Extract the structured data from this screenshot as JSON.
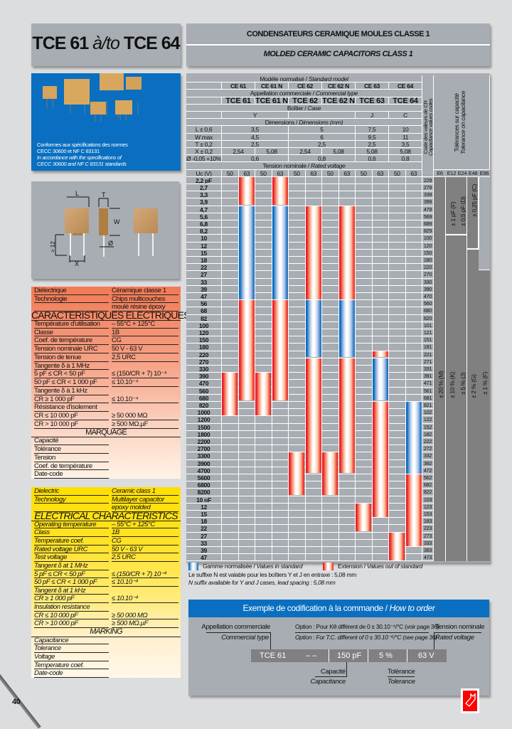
{
  "title": {
    "part1": "TCE 61",
    "mid": "à/",
    "mid_en": "to",
    "part2": "TCE 64"
  },
  "header": {
    "fr": "CONDENSATEURS CERAMIQUE MOULES CLASSE 1",
    "en": "MOLDED CERAMIC CAPACITORS CLASS 1"
  },
  "photo": {
    "lines": [
      "Conformes aux spécifications des normes",
      "CECC 30600 et NF C 83131"
    ],
    "lines_en": [
      "In accordance with the specifications of",
      "CECC 30600 and NF C 83131 standards"
    ]
  },
  "diagram": {
    "labels": {
      "L": "L",
      "T": "T",
      "W": "W",
      "min": "> 12",
      "X": "X",
      "dia": "Ø"
    }
  },
  "colors": {
    "panel": "#a7adb2",
    "blue": "#0a6fc0",
    "extension": "#e8232a",
    "french_table": "#f07a55",
    "english_table": "#ffe100",
    "tolerance_dark": "#808080"
  },
  "table": {
    "header_rows": [
      {
        "fr": "Modèle normalisé / ",
        "en": "Standard model"
      },
      {
        "label": "",
        "bold": true,
        "cells": [
          {
            "t": "CE 61",
            "span": 2
          },
          {
            "t": "CE 61 N",
            "span": 2
          },
          {
            "t": "CE 62",
            "span": 2
          },
          {
            "t": "CE 62 N",
            "span": 2
          },
          {
            "t": "CE 63",
            "span": 2
          },
          {
            "t": "CE 64",
            "span": 2
          }
        ]
      },
      {
        "fr": "Appellation commerciale / ",
        "en": "Commercial type"
      },
      {
        "label": "",
        "big": true,
        "cells": [
          {
            "t": "TCE 61",
            "span": 2
          },
          {
            "t": "TCE 61 N",
            "span": 2
          },
          {
            "t": "TCE 62",
            "span": 2
          },
          {
            "t": "TCE 62 N",
            "span": 2
          },
          {
            "t": "TCE 63",
            "span": 2
          },
          {
            "t": "TCE 64",
            "span": 2
          }
        ]
      },
      {
        "fr": "Boîtier / ",
        "en": "Case"
      },
      {
        "label": "",
        "cells": [
          {
            "t": "Y",
            "span": 4
          },
          {
            "t": "",
            "span": 4
          },
          {
            "t": "J",
            "span": 2
          },
          {
            "t": "C",
            "span": 2
          }
        ]
      },
      {
        "fr": "Dimensions / ",
        "en": "Dimensions (mm)"
      },
      {
        "label": "L ± 0,6",
        "cells": [
          {
            "t": "3,5",
            "span": 4
          },
          {
            "t": "5",
            "span": 4
          },
          {
            "t": "7,5",
            "span": 2
          },
          {
            "t": "10",
            "span": 2
          }
        ]
      },
      {
        "label": "W max",
        "cells": [
          {
            "t": "4,5",
            "span": 4
          },
          {
            "t": "6",
            "span": 4
          },
          {
            "t": "9,5",
            "span": 2
          },
          {
            "t": "11",
            "span": 2
          }
        ]
      },
      {
        "label": "T ± 0,2",
        "cells": [
          {
            "t": "2,5",
            "span": 4
          },
          {
            "t": "2,5",
            "span": 4
          },
          {
            "t": "2,5",
            "span": 2
          },
          {
            "t": "3,5",
            "span": 2
          }
        ]
      },
      {
        "label": "X ± 0,2",
        "cells": [
          {
            "t": "2,54",
            "span": 2
          },
          {
            "t": "5,08",
            "span": 2
          },
          {
            "t": "2,54",
            "span": 2
          },
          {
            "t": "5,08",
            "span": 2
          },
          {
            "t": "5,08",
            "span": 2
          },
          {
            "t": "5,08",
            "span": 2
          }
        ]
      },
      {
        "label": "Ø -0,05 +10%",
        "cells": [
          {
            "t": "0,6",
            "span": 4
          },
          {
            "t": "0,8",
            "span": 4
          },
          {
            "t": "0,6",
            "span": 2
          },
          {
            "t": "0,8",
            "span": 2
          }
        ]
      },
      {
        "fr": "Tension nominale / ",
        "en": "Rated voltage"
      },
      {
        "label": "Uc (V)",
        "cells": [
          {
            "t": "50",
            "span": 1
          },
          {
            "t": "63",
            "span": 1
          },
          {
            "t": "50",
            "span": 1
          },
          {
            "t": "63",
            "span": 1
          },
          {
            "t": "50",
            "span": 1
          },
          {
            "t": "63",
            "span": 1
          },
          {
            "t": "50",
            "span": 1
          },
          {
            "t": "63",
            "span": 1
          },
          {
            "t": "50",
            "span": 1
          },
          {
            "t": "63",
            "span": 1
          },
          {
            "t": "50",
            "span": 1
          },
          {
            "t": "63",
            "span": 1
          }
        ]
      }
    ],
    "code_header": [
      "Code des valeurs de CR",
      "Capacitance values codes"
    ],
    "tolerance_header": [
      "Tolérances sur capacité",
      "Tolerance on capacitance"
    ],
    "series": [
      "E6",
      "E12",
      "E24",
      "E48",
      "E96"
    ],
    "tolerances_small": [
      "± 1 pF (F)",
      "± 0,5 pF (D)",
      "± 0,25 pF (C)"
    ],
    "tolerances_pct": [
      "± 20 % (M)",
      "± 10 % (K)",
      "± 5 % (J)",
      "± 2 % (G)",
      "± 1 % (F)"
    ],
    "models": [
      "CE 61",
      "CE 61 N",
      "CE 62",
      "CE 62 N",
      "CE 63",
      "CE 64"
    ],
    "rows": [
      {
        "cap": "2,2 pF",
        "code": "229"
      },
      {
        "cap": "2,7",
        "code": "279"
      },
      {
        "cap": "3,3",
        "code": "339"
      },
      {
        "cap": "3,9",
        "code": "399"
      },
      {
        "cap": "4,7",
        "code": "479"
      },
      {
        "cap": "5,6",
        "code": "569"
      },
      {
        "cap": "6,8",
        "code": "689"
      },
      {
        "cap": "8,2",
        "code": "829"
      },
      {
        "cap": "10",
        "code": "100"
      },
      {
        "cap": "12",
        "code": "120"
      },
      {
        "cap": "15",
        "code": "150"
      },
      {
        "cap": "18",
        "code": "180"
      },
      {
        "cap": "22",
        "code": "220"
      },
      {
        "cap": "27",
        "code": "270"
      },
      {
        "cap": "33",
        "code": "330"
      },
      {
        "cap": "39",
        "code": "390"
      },
      {
        "cap": "47",
        "code": "470"
      },
      {
        "cap": "56",
        "code": "560"
      },
      {
        "cap": "68",
        "code": "680"
      },
      {
        "cap": "82",
        "code": "820"
      },
      {
        "cap": "100",
        "code": "101"
      },
      {
        "cap": "120",
        "code": "121"
      },
      {
        "cap": "150",
        "code": "151"
      },
      {
        "cap": "180",
        "code": "181"
      },
      {
        "cap": "220",
        "code": "221"
      },
      {
        "cap": "270",
        "code": "271"
      },
      {
        "cap": "330",
        "code": "331"
      },
      {
        "cap": "390",
        "code": "391"
      },
      {
        "cap": "470",
        "code": "471"
      },
      {
        "cap": "560",
        "code": "561"
      },
      {
        "cap": "680",
        "code": "681"
      },
      {
        "cap": "820",
        "code": "821"
      },
      {
        "cap": "1000",
        "code": "102"
      },
      {
        "cap": "1200",
        "code": "122"
      },
      {
        "cap": "1500",
        "code": "152"
      },
      {
        "cap": "1800",
        "code": "182"
      },
      {
        "cap": "2200",
        "code": "222"
      },
      {
        "cap": "2700",
        "code": "272"
      },
      {
        "cap": "3300",
        "code": "332"
      },
      {
        "cap": "3900",
        "code": "392"
      },
      {
        "cap": "4700",
        "code": "472"
      },
      {
        "cap": "5600",
        "code": "562"
      },
      {
        "cap": "6800",
        "code": "682"
      },
      {
        "cap": "8200",
        "code": "822"
      },
      {
        "cap": "10 nF",
        "code": "103"
      },
      {
        "cap": "12",
        "code": "123"
      },
      {
        "cap": "15",
        "code": "153"
      },
      {
        "cap": "18",
        "code": "183"
      },
      {
        "cap": "22",
        "code": "223"
      },
      {
        "cap": "27",
        "code": "273"
      },
      {
        "cap": "33",
        "code": "333"
      },
      {
        "cap": "39",
        "code": "393"
      },
      {
        "cap": "47",
        "code": "473"
      }
    ],
    "bars": [
      {
        "model": "CE 61",
        "voltage": "63",
        "type": "extension",
        "from": 0,
        "to": 3
      },
      {
        "model": "CE 61",
        "voltage": "63",
        "type": "standard",
        "from": 4,
        "to": 16
      },
      {
        "model": "CE 61",
        "voltage": "63",
        "type": "extension",
        "from": 17,
        "to": 30
      },
      {
        "model": "CE 61",
        "voltage": "50",
        "type": "extension",
        "from": 27,
        "to": 32
      },
      {
        "model": "CE 61 N",
        "voltage": "63",
        "type": "extension",
        "from": 0,
        "to": 3
      },
      {
        "model": "CE 61 N",
        "voltage": "63",
        "type": "standard",
        "from": 4,
        "to": 16
      },
      {
        "model": "CE 61 N",
        "voltage": "63",
        "type": "extension",
        "from": 17,
        "to": 30
      },
      {
        "model": "CE 61 N",
        "voltage": "50",
        "type": "extension",
        "from": 27,
        "to": 32
      },
      {
        "model": "CE 62",
        "voltage": "63",
        "type": "extension",
        "from": 4,
        "to": 16
      },
      {
        "model": "CE 62",
        "voltage": "63",
        "type": "standard",
        "from": 17,
        "to": 24
      },
      {
        "model": "CE 62",
        "voltage": "63",
        "type": "extension",
        "from": 25,
        "to": 40
      },
      {
        "model": "CE 62",
        "voltage": "50",
        "type": "extension",
        "from": 38,
        "to": 43
      },
      {
        "model": "CE 62 N",
        "voltage": "63",
        "type": "extension",
        "from": 4,
        "to": 16
      },
      {
        "model": "CE 62 N",
        "voltage": "63",
        "type": "standard",
        "from": 17,
        "to": 24
      },
      {
        "model": "CE 62 N",
        "voltage": "63",
        "type": "extension",
        "from": 25,
        "to": 40
      },
      {
        "model": "CE 62 N",
        "voltage": "50",
        "type": "extension",
        "from": 38,
        "to": 43
      },
      {
        "model": "CE 63",
        "voltage": "50",
        "type": "extension",
        "from": 45,
        "to": 48
      },
      {
        "model": "CE 63",
        "voltage": "63",
        "type": "extension",
        "from": 24,
        "to": 24
      },
      {
        "model": "CE 63",
        "voltage": "63",
        "type": "standard",
        "from": 25,
        "to": 30
      },
      {
        "model": "CE 63",
        "voltage": "63",
        "type": "extension",
        "from": 31,
        "to": 46
      },
      {
        "model": "CE 64",
        "voltage": "50",
        "type": "extension",
        "from": 49,
        "to": 52
      },
      {
        "model": "CE 64",
        "voltage": "63",
        "type": "standard",
        "from": 31,
        "to": 40
      },
      {
        "model": "CE 64",
        "voltage": "63",
        "type": "extension",
        "from": 41,
        "to": 50
      }
    ]
  },
  "legend": {
    "standard_fr": "Gamme normalisée / ",
    "standard_en": "Values in standard",
    "ext_fr": "Extension / ",
    "ext_en": "Values out of standard",
    "note_fr": "Le suffixe N est valable pour les boîtiers Y et J en entraxe : 5,08 mm",
    "note_en": "N suffix available for Y and J cases, lead spacing : 5,08 mm"
  },
  "fr_table": [
    {
      "l": "Diélectrique",
      "v": "Céramique classe 1"
    },
    {
      "l": "Technologie",
      "v": "Chips multicouches"
    },
    {
      "l": "",
      "v": "moulé résine époxy"
    },
    {
      "h": "CARACTERISTIQUES ELECTRIQUES"
    },
    {
      "l": "Température d'utilisation",
      "v": "– 55°C + 125°C"
    },
    {
      "l": "Classe",
      "v": "1B"
    },
    {
      "l": "Coef. de température",
      "v": "CG"
    },
    {
      "l": "Tension nominale URC",
      "v": "50 V - 63 V"
    },
    {
      "l": "Tension de tenue",
      "v": "2,5 URC"
    },
    {
      "l": "Tangente δ à 1 MHz",
      "v": ""
    },
    {
      "l": "5 pF ≤ CR < 50 pF",
      "v": "≤ (150/CR + 7) 10⁻⁴"
    },
    {
      "l": "50 pF ≤ CR < 1 000 pF",
      "v": "≤ 10.10⁻⁴"
    },
    {
      "l": "Tangente δ à 1 kHz",
      "v": ""
    },
    {
      "l": "CR ≥ 1 000 pF",
      "v": "≤ 10.10⁻⁴"
    },
    {
      "l": "Résistance d'isolement",
      "v": ""
    },
    {
      "l": "CR ≤ 10 000 pF",
      "v": "≥ 50 000 MΩ"
    },
    {
      "l": "CR > 10 000 pF",
      "v": "≥ 500 MΩ.µF"
    },
    {
      "h": "MARQUAGE"
    },
    {
      "l": "Capacité",
      "v": ""
    },
    {
      "l": "Tolérance",
      "v": ""
    },
    {
      "l": "Tension",
      "v": ""
    },
    {
      "l": "Coef. de température",
      "v": ""
    },
    {
      "l": "Date-code",
      "v": ""
    }
  ],
  "en_table": [
    {
      "l": "Dielectric",
      "v": "Ceramic class 1"
    },
    {
      "l": "Technology",
      "v": "Multilayer capacitor"
    },
    {
      "l": "",
      "v": "epoxy molded"
    },
    {
      "h": "ELECTRICAL CHARACTERISTICS"
    },
    {
      "l": "Operating temperature",
      "v": "– 55°C + 125°C"
    },
    {
      "l": "Class",
      "v": "1B"
    },
    {
      "l": "Temperature coef.",
      "v": "CG"
    },
    {
      "l": "Rated voltage URC",
      "v": "50 V - 63 V"
    },
    {
      "l": "Test voltage",
      "v": "2,5 URC"
    },
    {
      "l": "Tangent δ at 1 MHz",
      "v": ""
    },
    {
      "l": "5 pF ≤ CR < 50 pF",
      "v": "≤ (150/CR + 7) 10⁻⁴"
    },
    {
      "l": "50 pF ≤ CR < 1 000 pF",
      "v": "≤ 10.10⁻⁴"
    },
    {
      "l": "Tangent δ at 1 kHz",
      "v": ""
    },
    {
      "l": "CR ≥ 1 000 pF",
      "v": "≤ 10.10⁻⁴"
    },
    {
      "l": "Insulation resistance",
      "v": ""
    },
    {
      "l": "CR ≤ 10 000 pF",
      "v": "≥ 50 000 MΩ"
    },
    {
      "l": "CR > 10 000 pF",
      "v": "≥ 500 MΩ.µF"
    },
    {
      "h": "MARKING"
    },
    {
      "l": "Capacitance",
      "v": ""
    },
    {
      "l": "Tolerance",
      "v": ""
    },
    {
      "l": "Voltage",
      "v": ""
    },
    {
      "l": "Temperature coef.",
      "v": ""
    },
    {
      "l": "Date-code",
      "v": ""
    }
  ],
  "order": {
    "title_fr": "Exemple de codification à la commande / ",
    "title_en": "How to order",
    "type_fr": "Appellation commerciale",
    "type_en": "Commercial type",
    "option_fr": "Option : Pour Kθ différent de 0 ± 30.10⁻⁶/°C (voir page 36)",
    "option_en": "Option : For T.C. different of 0 ± 30.10⁻⁶/°C (see page 36)",
    "volt_fr": "Tension nominale",
    "volt_en": "Rated voltage",
    "code": {
      "type": "TCE 61",
      "option": "– –",
      "cap": "150 pF",
      "tol": "5 %",
      "volt": "63 V"
    },
    "cap_fr": "Capacité",
    "cap_en": "Capacitance",
    "tol_fr": "Tolérance",
    "tol_en": "Tolerance"
  },
  "page_number": "40"
}
